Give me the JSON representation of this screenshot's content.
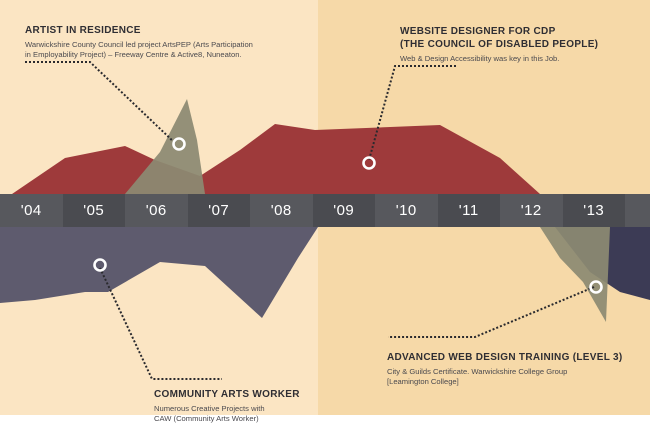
{
  "timeline": {
    "years": [
      "'04",
      "'05",
      "'06",
      "'07",
      "'08",
      "'09",
      "'10",
      "'11",
      "'12",
      "'13"
    ]
  },
  "entries": {
    "artist": {
      "title": "ARTIST IN RESIDENCE",
      "desc_line1": "Warwickshire County Council led project ArtsPEP (Arts Participation",
      "desc_line2": "in Employability Project) – Freeway Centre & Active8, Nuneaton."
    },
    "web_designer": {
      "title_line1": "WEBSITE DESIGNER FOR CDP",
      "title_line2": "(THE COUNCIL OF DISABLED PEOPLE)",
      "desc_line1": "Web & Design Accessibility was key in this Job."
    },
    "training": {
      "title": "ADVANCED WEB DESIGN TRAINING (LEVEL 3)",
      "desc_line1": "City & Guilds Certificate. Warwickshire College Group",
      "desc_line2": "[Leamington College]"
    },
    "community": {
      "title": "COMMUNITY ARTS WORKER",
      "desc_line1": "Numerous Creative Projects with",
      "desc_line2": "CAW (Community Arts Worker)"
    }
  },
  "colors": {
    "red_area": "#9e3a3b",
    "purple_area": "#5e5b6e",
    "olive_area": "#8c8a72",
    "navy_area": "#3c3b55",
    "bar_dark": "#4a4b50",
    "bar_light": "#57585d"
  }
}
